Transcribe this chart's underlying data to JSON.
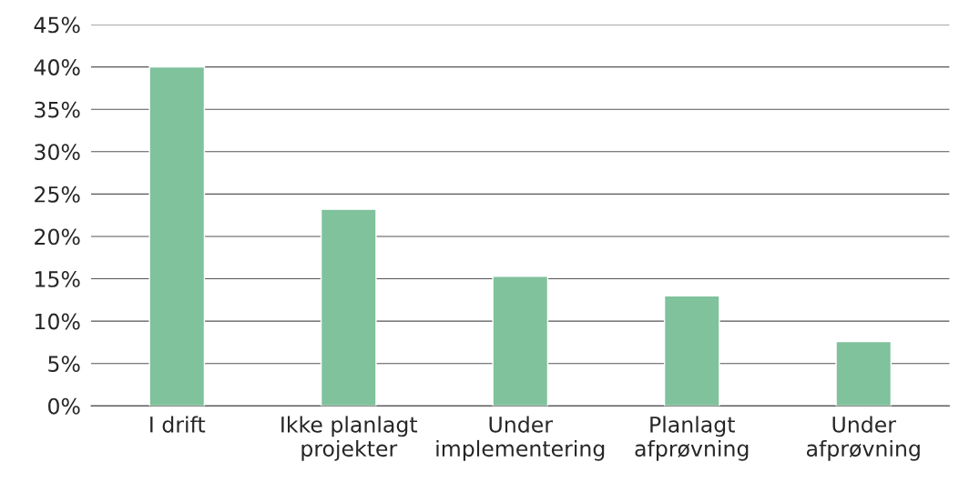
{
  "chart_data": {
    "type": "bar",
    "categories": [
      "I drift",
      "Ikke planlagt\nprojekter",
      "Under\nimplementering",
      "Planlagt\nafprøvning",
      "Under\nafprøvning"
    ],
    "values": [
      40.0,
      23.2,
      15.3,
      13.0,
      7.6
    ],
    "color": "#7fc29c",
    "ylim": [
      0,
      45
    ],
    "yticks": [
      {
        "value": 0,
        "label": "0%"
      },
      {
        "value": 5,
        "label": "5%"
      },
      {
        "value": 10,
        "label": "10%"
      },
      {
        "value": 15,
        "label": "15%"
      },
      {
        "value": 20,
        "label": "20%"
      },
      {
        "value": 25,
        "label": "25%"
      },
      {
        "value": 30,
        "label": "30%"
      },
      {
        "value": 35,
        "label": "35%"
      },
      {
        "value": 40,
        "label": "40%"
      },
      {
        "value": 45,
        "label": "45%"
      }
    ],
    "grid": "y"
  }
}
